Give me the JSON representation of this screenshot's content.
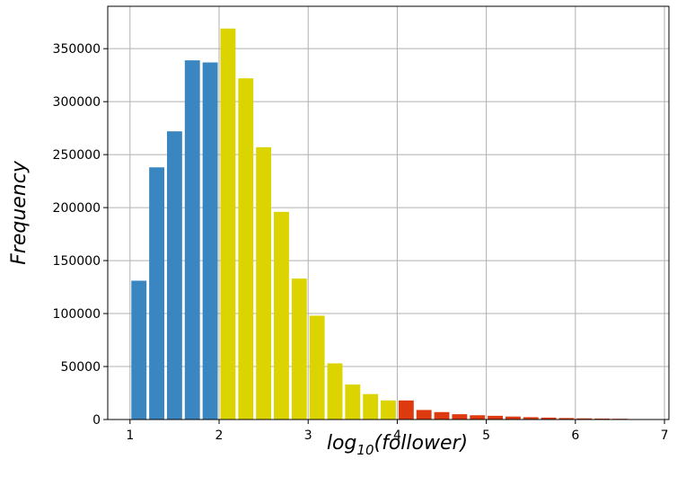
{
  "chart_data": {
    "type": "bar",
    "title": "",
    "xlabel": "log",
    "xlabel_subscript": "10",
    "xlabel_rest": "(follower)",
    "ylabel": "Frequency",
    "xlim": [
      0.75,
      7.05
    ],
    "ylim": [
      0,
      390000
    ],
    "grid": true,
    "bar_width": 0.17,
    "x_ticks": [
      1,
      2,
      3,
      4,
      5,
      6,
      7
    ],
    "y_ticks": [
      0,
      50000,
      100000,
      150000,
      200000,
      250000,
      300000,
      350000
    ],
    "colors": {
      "low": "#3a86c0",
      "mid": "#dcd400",
      "high": "#dd3a10"
    },
    "bars": [
      {
        "x": 1.1,
        "value": 131000,
        "group": "low"
      },
      {
        "x": 1.3,
        "value": 238000,
        "group": "low"
      },
      {
        "x": 1.5,
        "value": 272000,
        "group": "low"
      },
      {
        "x": 1.7,
        "value": 339000,
        "group": "low"
      },
      {
        "x": 1.9,
        "value": 337000,
        "group": "low"
      },
      {
        "x": 2.1,
        "value": 369000,
        "group": "mid"
      },
      {
        "x": 2.3,
        "value": 322000,
        "group": "mid"
      },
      {
        "x": 2.5,
        "value": 257000,
        "group": "mid"
      },
      {
        "x": 2.7,
        "value": 196000,
        "group": "mid"
      },
      {
        "x": 2.9,
        "value": 133000,
        "group": "mid"
      },
      {
        "x": 3.1,
        "value": 98000,
        "group": "mid"
      },
      {
        "x": 3.3,
        "value": 53000,
        "group": "mid"
      },
      {
        "x": 3.5,
        "value": 33000,
        "group": "mid"
      },
      {
        "x": 3.7,
        "value": 24000,
        "group": "mid"
      },
      {
        "x": 3.9,
        "value": 18000,
        "group": "mid"
      },
      {
        "x": 4.1,
        "value": 18000,
        "group": "high"
      },
      {
        "x": 4.3,
        "value": 9000,
        "group": "high"
      },
      {
        "x": 4.5,
        "value": 7000,
        "group": "high"
      },
      {
        "x": 4.7,
        "value": 5000,
        "group": "high"
      },
      {
        "x": 4.9,
        "value": 4000,
        "group": "high"
      },
      {
        "x": 5.1,
        "value": 3500,
        "group": "high"
      },
      {
        "x": 5.3,
        "value": 2800,
        "group": "high"
      },
      {
        "x": 5.5,
        "value": 2200,
        "group": "high"
      },
      {
        "x": 5.7,
        "value": 1800,
        "group": "high"
      },
      {
        "x": 5.9,
        "value": 1400,
        "group": "high"
      },
      {
        "x": 6.1,
        "value": 1100,
        "group": "high"
      },
      {
        "x": 6.3,
        "value": 900,
        "group": "high"
      },
      {
        "x": 6.5,
        "value": 700,
        "group": "high"
      }
    ]
  }
}
